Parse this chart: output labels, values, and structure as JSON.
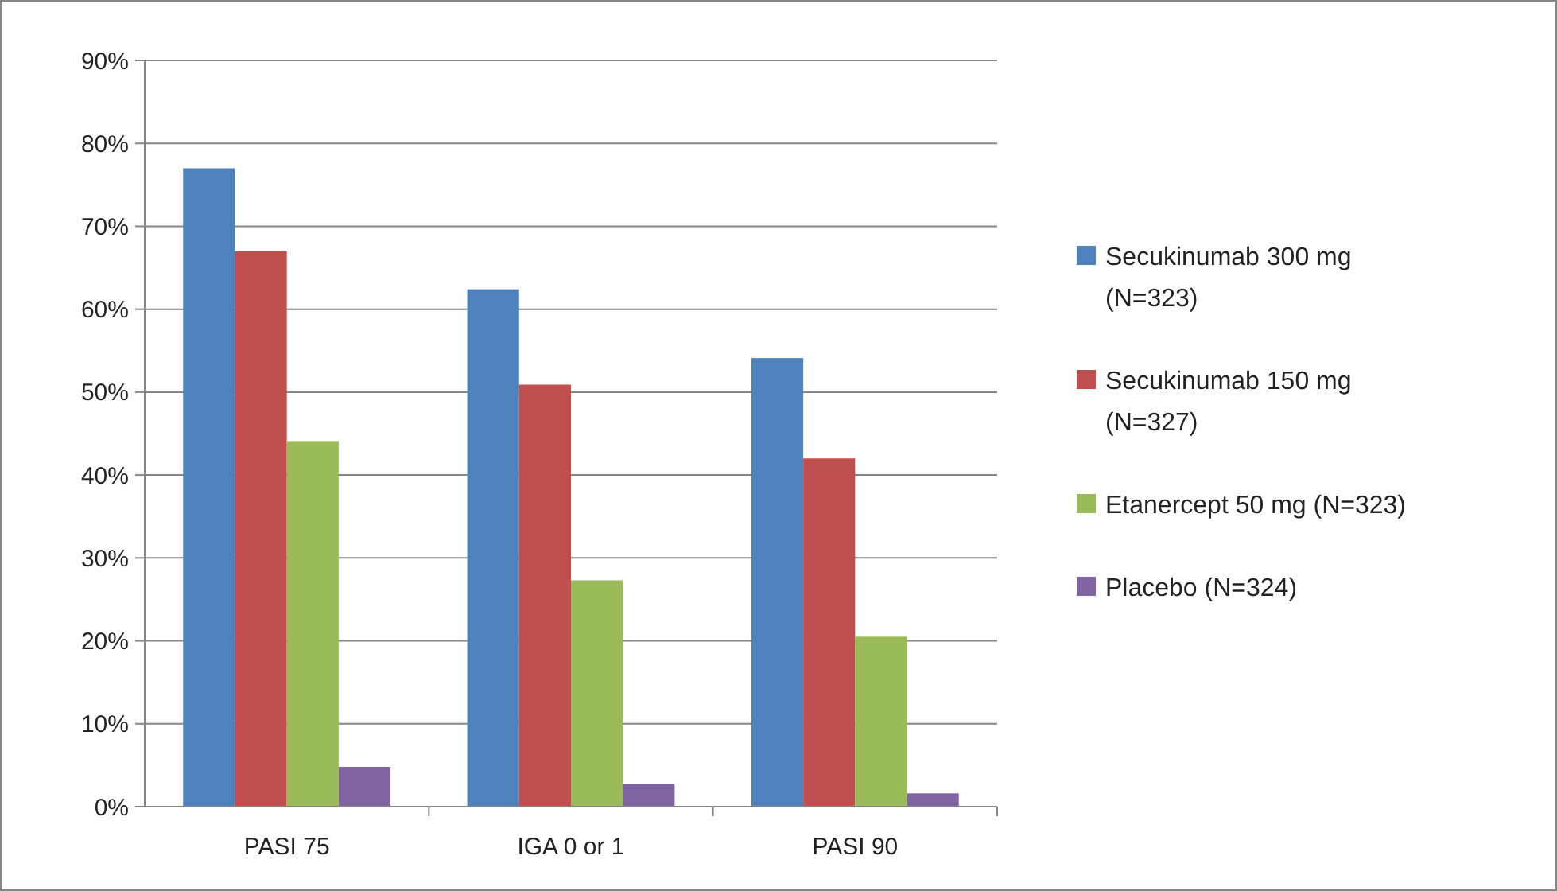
{
  "chart_data": {
    "type": "bar",
    "categories": [
      "PASI 75",
      "IGA 0 or 1",
      "PASI 90"
    ],
    "series": [
      {
        "name": "Secukinumab 300 mg (N=323)",
        "color": "#4f81bd",
        "values": [
          77,
          62.4,
          54.1
        ]
      },
      {
        "name": "Secukinumab 150 mg (N=327)",
        "color": "#c0504d",
        "values": [
          67,
          50.9,
          42
        ]
      },
      {
        "name": "Etanercept 50 mg (N=323)",
        "color": "#9bbb59",
        "values": [
          44.1,
          27.3,
          20.5
        ]
      },
      {
        "name": "Placebo (N=324)",
        "color": "#8064a2",
        "values": [
          4.8,
          2.7,
          1.6
        ]
      }
    ],
    "ylim": [
      0,
      90
    ],
    "yticks": [
      {
        "value": 0,
        "label": "0%"
      },
      {
        "value": 10,
        "label": "10%"
      },
      {
        "value": 20,
        "label": "20%"
      },
      {
        "value": 30,
        "label": "30%"
      },
      {
        "value": 40,
        "label": "40%"
      },
      {
        "value": 50,
        "label": "50%"
      },
      {
        "value": 60,
        "label": "60%"
      },
      {
        "value": 70,
        "label": "70%"
      },
      {
        "value": 80,
        "label": "80%"
      },
      {
        "value": 90,
        "label": "90%"
      }
    ],
    "grid": "y",
    "legend": "right"
  }
}
